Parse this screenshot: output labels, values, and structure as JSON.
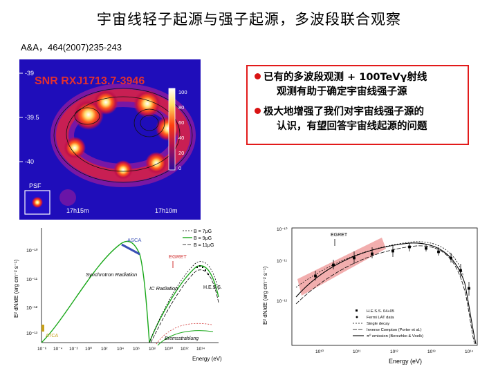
{
  "title": "宇宙线轻子起源与强子起源，多波段联合观察",
  "reference": "A&A，464(2007)235-243",
  "skymap": {
    "label": "SNR RXJ1713.7-3946",
    "dec_ticks": [
      "-39",
      "-39.5",
      "-40"
    ],
    "ra_ticks": [
      "17h15m",
      "17h10m"
    ],
    "colorbar_ticks": [
      "100",
      "80",
      "60",
      "40",
      "20",
      "0"
    ],
    "psf_label": "PSF"
  },
  "callout": {
    "bullet1_line1": "已有的多波段观测 + 100TeVγ射线",
    "bullet1_line2": "观测有助于确定宇宙线强子源",
    "bullet2_line1": "极大地增强了我们对宇宙线强子源的",
    "bullet2_line2": "认识，有望回答宇宙线起源的问题"
  },
  "plot_left": {
    "ylabel": "E² dN/dE (erg cm⁻² s⁻¹)",
    "xlabel": "Energy (eV)",
    "yticks": [
      "10⁻¹⁰",
      "10⁻¹¹",
      "10⁻¹²",
      "10⁻¹³"
    ],
    "xticks": [
      "10⁻⁶",
      "10⁻⁴",
      "10⁻²",
      "10⁰",
      "10²",
      "10⁴",
      "10⁶",
      "10⁸",
      "10¹⁰",
      "10¹²",
      "10¹⁴"
    ],
    "legend": [
      "B = 7μG",
      "B = 9μG",
      "B = 11μG"
    ],
    "labels": {
      "asca": "ASCA",
      "egret": "EGRET",
      "synchrotron": "Synchrotron\nRadiation",
      "ic": "IC Radiation",
      "hess": "H.E.S.S.",
      "atca": "ATCA",
      "brems": "Bremsstrahlung"
    },
    "colors": {
      "synchrotron": "#1aa81a",
      "asca": "#3a4fb5",
      "egret": "#d03030",
      "atca": "#c8a018"
    }
  },
  "plot_right": {
    "ylabel": "E² dN/dE (erg cm⁻² s⁻¹)",
    "xlabel": "Energy (eV)",
    "yticks": [
      "10⁻¹⁰",
      "10⁻¹¹",
      "10⁻¹²"
    ],
    "xticks": [
      "10¹⁰",
      "10¹¹",
      "10¹²",
      "10¹³",
      "10¹⁴"
    ],
    "egret_label": "EGRET",
    "legend": [
      "H.E.S.S. 04+05",
      "Fermi LAT data",
      "Single decay",
      "Inverse Compton (Porter et al.)",
      "π⁰ emission (Berezhko & Voelk)"
    ],
    "colors": {
      "band": "#f0a0a0"
    }
  }
}
